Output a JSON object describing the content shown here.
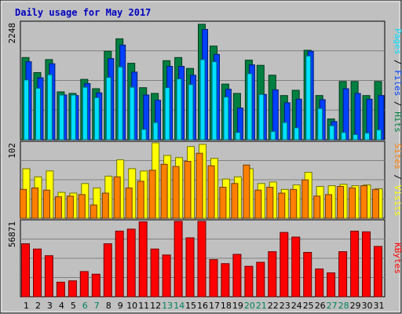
{
  "chart_data": {
    "type": "bar",
    "title": "Daily usage for May 2017",
    "categories": [
      "1",
      "2",
      "3",
      "4",
      "5",
      "6",
      "7",
      "8",
      "9",
      "10",
      "11",
      "12",
      "13",
      "14",
      "15",
      "16",
      "17",
      "18",
      "19",
      "20",
      "21",
      "22",
      "23",
      "24",
      "25",
      "26",
      "27",
      "28",
      "29",
      "30",
      "31"
    ],
    "weekend_days": [
      "6",
      "7",
      "13",
      "14",
      "20",
      "21",
      "27",
      "28"
    ],
    "colors": {
      "background": "#c0c0c0",
      "title": "#0000c0",
      "hits": "#008040",
      "files": "#0040ff",
      "pages": "#00e0ff",
      "visits": "#ffff00",
      "sites": "#ff8000",
      "kbytes": "#ff0000",
      "weekend_label": "#00805c"
    },
    "panels": [
      {
        "id": "traffic",
        "max_label": "2248",
        "ylim": [
          0,
          2248
        ],
        "legend": [
          {
            "label": "Pages",
            "color": "#00e0ff"
          },
          {
            "label": " / ",
            "color": "#000000"
          },
          {
            "label": "Files",
            "color": "#0040ff"
          },
          {
            "label": " / ",
            "color": "#000000"
          },
          {
            "label": "Hits",
            "color": "#008040"
          }
        ],
        "series": [
          {
            "name": "Hits",
            "color": "#008040",
            "values": [
              1580,
              1290,
              1540,
              920,
              890,
              1160,
              980,
              1700,
              1940,
              1470,
              1000,
              890,
              1520,
              1580,
              1370,
              2220,
              1800,
              1070,
              890,
              1530,
              1430,
              1240,
              850,
              950,
              1720,
              850,
              400,
              1120,
              1120,
              850,
              1120
            ]
          },
          {
            "name": "Files",
            "color": "#0040ff",
            "values": [
              1500,
              1190,
              1460,
              860,
              850,
              1080,
              900,
              1560,
              1820,
              1300,
              860,
              760,
              1410,
              1410,
              1240,
              2120,
              1640,
              970,
              610,
              1440,
              870,
              960,
              710,
              780,
              1700,
              770,
              350,
              980,
              890,
              780,
              850
            ]
          },
          {
            "name": "Pages",
            "color": "#00e0ff",
            "values": [
              1150,
              990,
              1250,
              860,
              860,
              1010,
              810,
              1200,
              1400,
              1010,
              200,
              330,
              1000,
              1170,
              1060,
              1540,
              1500,
              820,
              140,
              1270,
              870,
              160,
              330,
              230,
              1610,
              600,
              270,
              140,
              100,
              130,
              190
            ]
          }
        ]
      },
      {
        "id": "visitors",
        "max_label": "102",
        "ylim": [
          0,
          102
        ],
        "legend": [
          {
            "label": "Sites",
            "color": "#ff8000"
          },
          {
            "label": " / ",
            "color": "#000000"
          },
          {
            "label": "Visits",
            "color": "#ffff00"
          }
        ],
        "series": [
          {
            "name": "Visits",
            "color": "#ffff00",
            "values": [
              67,
              56,
              64,
              35,
              34,
              47,
              41,
              57,
              79,
              67,
              64,
              102,
              85,
              82,
              97,
              100,
              81,
              53,
              56,
              67,
              47,
              49,
              39,
              45,
              62,
              43,
              44,
              46,
              44,
              45,
              40
            ]
          },
          {
            "name": "Sites",
            "color": "#ff8000",
            "values": [
              39,
              41,
              38,
              29,
              30,
              32,
              18,
              34,
              56,
              41,
              50,
              65,
              73,
              70,
              77,
              88,
              71,
              42,
              47,
              72,
              38,
              42,
              34,
              39,
              52,
              30,
              32,
              43,
              41,
              44,
              39
            ]
          }
        ]
      },
      {
        "id": "volume",
        "max_label": "56871",
        "ylim": [
          0,
          56871
        ],
        "legend": [
          {
            "label": "KBytes",
            "color": "#ff0000"
          }
        ],
        "series": [
          {
            "name": "KBytes",
            "color": "#ff0000",
            "values": [
              40000,
              36000,
              31000,
              11000,
              12000,
              19000,
              17000,
              40000,
              49500,
              51000,
              56500,
              36000,
              31500,
              56871,
              44500,
              56871,
              28000,
              25000,
              32000,
              23000,
              26000,
              34000,
              48500,
              45000,
              33500,
              21000,
              18000,
              34000,
              49500,
              49000,
              38000
            ]
          }
        ]
      }
    ],
    "grid": true,
    "xlabel": "",
    "ylabel": ""
  }
}
